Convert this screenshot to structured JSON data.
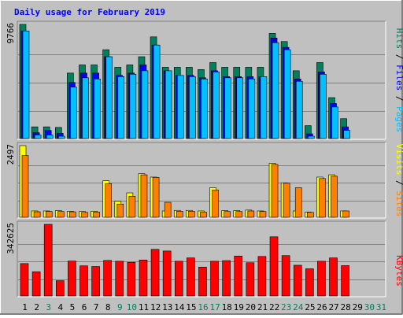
{
  "title": "Daily usage for February 2019",
  "colors": {
    "background": "#c0c0c0",
    "title": "#0000ff",
    "hits_top": "#006f55",
    "hits": "#00805c",
    "files": "#0000ff",
    "pages": "#00c0ff",
    "visits": "#ffff00",
    "sites": "#ff8000",
    "kbytes": "#ff0000",
    "weekend": "#00805c",
    "weekday": "#000000"
  },
  "chart_data": [
    {
      "type": "bar",
      "name": "hits-files-pages",
      "ymax_label": "9766",
      "right_label": [
        "Pages",
        "Files",
        "Hits"
      ],
      "categories": [
        "1",
        "2",
        "3",
        "4",
        "5",
        "6",
        "7",
        "8",
        "9",
        "10",
        "11",
        "12",
        "13",
        "14",
        "15",
        "16",
        "17",
        "18",
        "19",
        "20",
        "21",
        "22",
        "23",
        "24",
        "25",
        "26",
        "27",
        "28",
        "29",
        "30",
        "31"
      ],
      "ylim": [
        0,
        9766
      ],
      "series": [
        {
          "name": "Hits",
          "values": [
            9766,
            1000,
            1000,
            950,
            5600,
            6300,
            6300,
            7600,
            6100,
            6300,
            7000,
            8700,
            6100,
            6100,
            6100,
            5900,
            6500,
            6100,
            6100,
            6100,
            6100,
            9000,
            8300,
            5800,
            1100,
            6500,
            3500,
            1700,
            0,
            0,
            0
          ]
        },
        {
          "name": "Files",
          "values": [
            9200,
            500,
            700,
            450,
            4800,
            5600,
            5600,
            7000,
            5400,
            5600,
            6300,
            8000,
            5800,
            5400,
            5400,
            5200,
            5800,
            5300,
            5300,
            5300,
            5300,
            8600,
            7800,
            5100,
            400,
            5700,
            3000,
            1000,
            0,
            0,
            0
          ]
        },
        {
          "name": "Pages",
          "values": [
            9200,
            300,
            300,
            200,
            4400,
            5200,
            5100,
            7000,
            5300,
            5500,
            5800,
            8000,
            5800,
            5400,
            5300,
            5100,
            5700,
            5200,
            5200,
            5100,
            5300,
            8200,
            7600,
            4900,
            200,
            5500,
            2700,
            700,
            0,
            0,
            0
          ]
        }
      ]
    },
    {
      "type": "bar",
      "name": "visits-sites",
      "ymax_label": "2497",
      "right_label": [
        "Sites",
        "Visits"
      ],
      "categories": [
        "1",
        "2",
        "3",
        "4",
        "5",
        "6",
        "7",
        "8",
        "9",
        "10",
        "11",
        "12",
        "13",
        "14",
        "15",
        "16",
        "17",
        "18",
        "19",
        "20",
        "21",
        "22",
        "23",
        "24",
        "25",
        "26",
        "27",
        "28",
        "29",
        "30",
        "31"
      ],
      "ylim": [
        0,
        2497
      ],
      "series": [
        {
          "name": "Visits",
          "values": [
            2497,
            220,
            220,
            230,
            210,
            200,
            210,
            1270,
            560,
            850,
            1520,
            1400,
            220,
            240,
            240,
            220,
            1030,
            230,
            230,
            250,
            220,
            1880,
            1200,
            220,
            180,
            1400,
            1480,
            220,
            0,
            0,
            0
          ]
        },
        {
          "name": "Sites",
          "values": [
            2150,
            190,
            200,
            200,
            190,
            170,
            180,
            1170,
            460,
            730,
            1480,
            1390,
            520,
            210,
            210,
            180,
            950,
            200,
            200,
            220,
            200,
            1840,
            1190,
            1030,
            170,
            1350,
            1430,
            220,
            0,
            0,
            0
          ]
        }
      ]
    },
    {
      "type": "bar",
      "name": "kbytes",
      "ymax_label": "342625",
      "right_label": [
        "KBytes"
      ],
      "categories": [
        "1",
        "2",
        "3",
        "4",
        "5",
        "6",
        "7",
        "8",
        "9",
        "10",
        "11",
        "12",
        "13",
        "14",
        "15",
        "16",
        "17",
        "18",
        "19",
        "20",
        "21",
        "22",
        "23",
        "24",
        "25",
        "26",
        "27",
        "28",
        "29",
        "30",
        "31"
      ],
      "ylim": [
        0,
        342625
      ],
      "series": [
        {
          "name": "KBytes",
          "values": [
            155000,
            116000,
            342625,
            73000,
            167000,
            144000,
            141000,
            170000,
            166000,
            161000,
            172000,
            223000,
            215000,
            166000,
            182000,
            138000,
            166000,
            169000,
            191000,
            159000,
            189000,
            283000,
            193000,
            147000,
            130000,
            166000,
            182000,
            145000,
            0,
            0,
            0
          ]
        }
      ]
    }
  ],
  "weekend_days": [
    "3",
    "9",
    "10",
    "16",
    "17",
    "23",
    "24",
    "30",
    "31"
  ]
}
